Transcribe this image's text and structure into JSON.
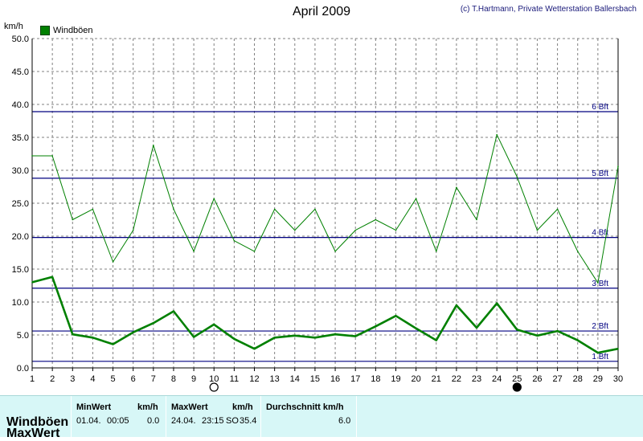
{
  "header": {
    "title": "April 2009",
    "credit": "(c) T.Hartmann, Private Wetterstation Ballersbach",
    "unit": "km/h",
    "legend": "Windböen"
  },
  "chart_data": {
    "type": "line",
    "title": "April 2009",
    "ylabel": "km/h",
    "xlabel": "",
    "ylim": [
      0,
      50
    ],
    "y_ticks": [
      "0.0",
      "5.0",
      "10.0",
      "15.0",
      "20.0",
      "25.0",
      "30.0",
      "35.0",
      "40.0",
      "45.0",
      "50.0"
    ],
    "x_ticks": [
      "1",
      "2",
      "3",
      "4",
      "5",
      "6",
      "7",
      "8",
      "9",
      "10",
      "11",
      "12",
      "13",
      "14",
      "15",
      "16",
      "17",
      "18",
      "19",
      "20",
      "21",
      "22",
      "23",
      "24",
      "25",
      "26",
      "27",
      "28",
      "29",
      "30"
    ],
    "grid": true,
    "legend_position": "top-left",
    "colors": {
      "series": "#008000",
      "beaufort": "#000080",
      "grid": "#808080"
    },
    "beaufort_lines": [
      {
        "label": "1 Bft",
        "value": 1
      },
      {
        "label": "2 Bft",
        "value": 5.6
      },
      {
        "label": "3 Bft",
        "value": 12.1
      },
      {
        "label": "4 Bft",
        "value": 19.8
      },
      {
        "label": "5 Bft",
        "value": 28.8
      },
      {
        "label": "6 Bft",
        "value": 38.9
      }
    ],
    "moon_markers": [
      {
        "day": 10,
        "phase": "full"
      },
      {
        "day": 25,
        "phase": "new"
      }
    ],
    "series": [
      {
        "name": "Windböen",
        "style": "max",
        "x": [
          1,
          2,
          3,
          4,
          5,
          6,
          7,
          8,
          9,
          10,
          11,
          12,
          13,
          14,
          15,
          16,
          17,
          18,
          19,
          20,
          21,
          22,
          23,
          24,
          25,
          26,
          27,
          28,
          29,
          30
        ],
        "values": [
          32.2,
          32.2,
          22.5,
          24.1,
          16.1,
          20.9,
          33.8,
          24.1,
          17.7,
          25.7,
          19.3,
          17.7,
          24.1,
          20.9,
          24.1,
          17.7,
          20.9,
          22.5,
          20.9,
          25.7,
          17.7,
          27.4,
          22.5,
          35.4,
          29.0,
          20.9,
          24.1,
          17.7,
          12.9,
          30.6
        ]
      },
      {
        "name": "Windböen",
        "style": "avg",
        "x": [
          1,
          2,
          3,
          4,
          5,
          6,
          7,
          8,
          9,
          10,
          11,
          12,
          13,
          14,
          15,
          16,
          17,
          18,
          19,
          20,
          21,
          22,
          23,
          24,
          25,
          26,
          27,
          28,
          29,
          30
        ],
        "values": [
          13.0,
          13.8,
          5.1,
          4.6,
          3.6,
          5.4,
          6.8,
          8.6,
          4.7,
          6.6,
          4.4,
          2.9,
          4.6,
          4.9,
          4.6,
          5.1,
          4.8,
          6.3,
          7.9,
          6.0,
          4.2,
          9.5,
          6.1,
          9.8,
          5.8,
          4.9,
          5.6,
          4.2,
          2.3,
          2.9
        ]
      }
    ]
  },
  "table": {
    "row_label_1": "Windböen",
    "row_label_2": "MaxWert",
    "min_header": "MinWert",
    "min_unit": "km/h",
    "min_date": "01.04.",
    "min_time": "00:05",
    "min_value": "0.0",
    "max_header": "MaxWert",
    "max_unit": "km/h",
    "max_date": "24.04.",
    "max_time": "23:15",
    "max_dir": "SO",
    "max_value": "35.4",
    "avg_header": "Durchschnitt km/h",
    "avg_value": "6.0"
  }
}
